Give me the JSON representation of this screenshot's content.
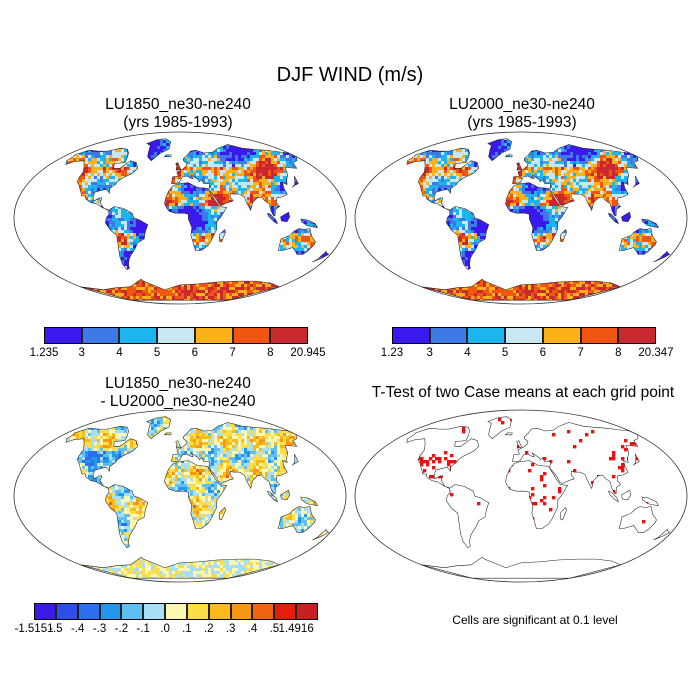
{
  "figure": {
    "title": "DJF WIND (m/s)",
    "significance_note": "Cells are significant at 0.1 level"
  },
  "panels": [
    {
      "id": "lu1850",
      "title_line1": "LU1850_ne30-ne240",
      "title_line2": "(yrs 1985-1993)",
      "colorbar": {
        "colors": [
          "#3a19ec",
          "#3f79e6",
          "#1db5ef",
          "#c9e6f3",
          "#fbb21a",
          "#f25411",
          "#c8282e"
        ],
        "labels": [
          "1.235",
          "3",
          "4",
          "5",
          "6",
          "7",
          "8",
          "20.945"
        ]
      }
    },
    {
      "id": "lu2000",
      "title_line1": "LU2000_ne30-ne240",
      "title_line2": "(yrs 1985-1993)",
      "colorbar": {
        "colors": [
          "#3a19ec",
          "#3f79e6",
          "#1db5ef",
          "#c9e6f3",
          "#fbb21a",
          "#f25411",
          "#c8282e"
        ],
        "labels": [
          "1.23",
          "3",
          "4",
          "5",
          "6",
          "7",
          "8",
          "20.347"
        ]
      }
    },
    {
      "id": "difference",
      "title_line1": "LU1850_ne30-ne240",
      "title_line2": "- LU2000_ne30-ne240",
      "colorbar": {
        "colors": [
          "#3c1ae6",
          "#2f4ee8",
          "#2b6ef0",
          "#2496ec",
          "#5fc0f0",
          "#a9def7",
          "#fdf7b4",
          "#fcdf48",
          "#f9bb1a",
          "#f69814",
          "#ef6410",
          "#e61c0c",
          "#c81f25"
        ],
        "labels": [
          "-1.5151",
          "-.5",
          "-.4",
          "-.3",
          "-.2",
          "-.1",
          ".0",
          ".1",
          ".2",
          ".3",
          ".4",
          ".5",
          "1.4916"
        ]
      }
    },
    {
      "id": "ttest",
      "title_line1": "T-Test of two Case means at each grid point",
      "significant_color": "#ee1111"
    }
  ]
}
